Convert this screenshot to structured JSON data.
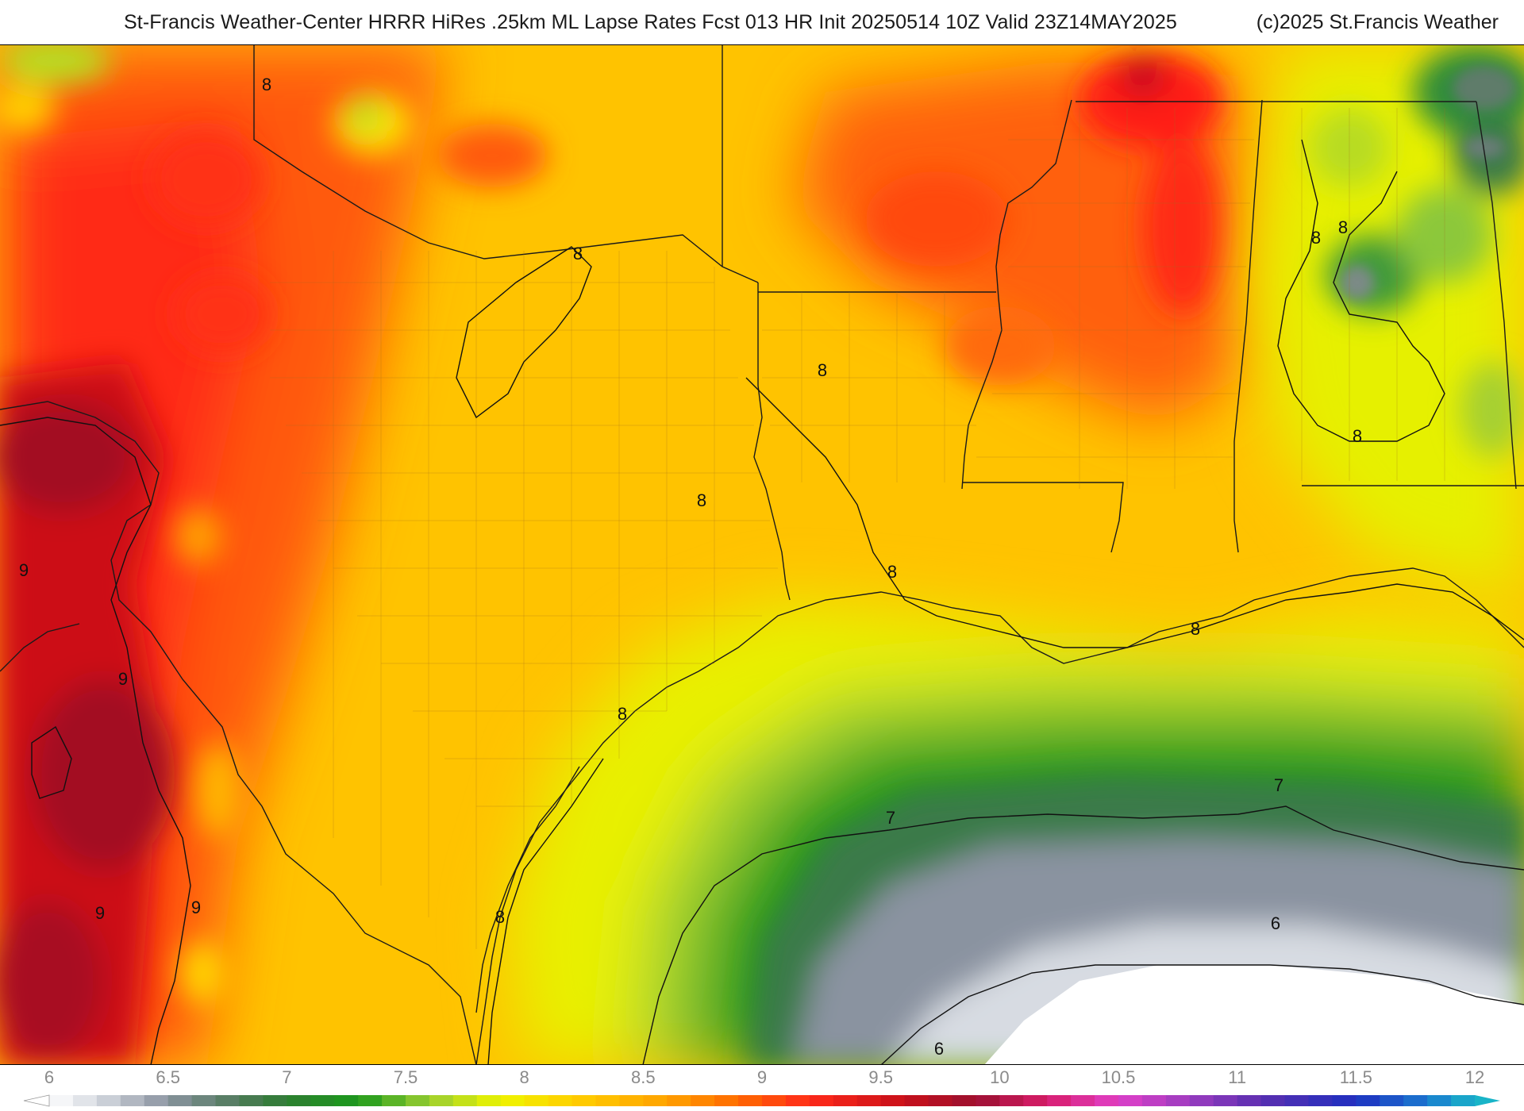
{
  "header": {
    "title": "St-Francis Weather-Center HRRR HiRes .25km ML Lapse Rates  Fcst 013 HR Init 20250514 10Z  Valid 23Z14MAY2025",
    "credit": "(c)2025 St.Francis Weather"
  },
  "map": {
    "contour_labels": [
      {
        "id": "c1",
        "text": "8"
      },
      {
        "id": "c2",
        "text": "8"
      },
      {
        "id": "c3",
        "text": "8"
      },
      {
        "id": "c4",
        "text": "8"
      },
      {
        "id": "c5",
        "text": "8"
      },
      {
        "id": "c6",
        "text": "8"
      },
      {
        "id": "c7",
        "text": "8"
      },
      {
        "id": "c8",
        "text": "8"
      },
      {
        "id": "c9",
        "text": "8"
      },
      {
        "id": "c10",
        "text": "8"
      },
      {
        "id": "c11",
        "text": "8"
      },
      {
        "id": "c12",
        "text": "9"
      },
      {
        "id": "c13",
        "text": "9"
      },
      {
        "id": "c14",
        "text": "9"
      },
      {
        "id": "c15",
        "text": "9"
      },
      {
        "id": "c16",
        "text": "7"
      },
      {
        "id": "c17",
        "text": "7"
      },
      {
        "id": "c18",
        "text": "6"
      },
      {
        "id": "c19",
        "text": "6"
      }
    ],
    "colors": {
      "v6": "#f2f2f6",
      "v6_5": "#8a93a0",
      "v7": "#2e7d32",
      "v7_5": "#9acd32",
      "v8": "#ffe600",
      "v8_5": "#ffa200",
      "v9": "#ff3a1a",
      "v9_5": "#c0101a",
      "v10": "#d81d6b",
      "v10_5": "#b93fbf",
      "v11": "#5b2fb0",
      "v11_5": "#1f2fc0",
      "v12": "#19b4c8"
    }
  },
  "colorbar": {
    "ticks": [
      "6",
      "6.5",
      "7",
      "7.5",
      "8",
      "8.5",
      "9",
      "9.5",
      "10",
      "10.5",
      "11",
      "11.5",
      "12"
    ],
    "min": 6,
    "max": 12,
    "step": 0.1,
    "stops": [
      {
        "v": 6.0,
        "color": "#ffffff"
      },
      {
        "v": 6.2,
        "color": "#d7dbe2"
      },
      {
        "v": 6.5,
        "color": "#8a93a0"
      },
      {
        "v": 6.8,
        "color": "#4f7a5a"
      },
      {
        "v": 7.0,
        "color": "#2e7d32"
      },
      {
        "v": 7.3,
        "color": "#1c9a1c"
      },
      {
        "v": 7.6,
        "color": "#9acd32"
      },
      {
        "v": 7.9,
        "color": "#eef500"
      },
      {
        "v": 8.2,
        "color": "#ffd000"
      },
      {
        "v": 8.6,
        "color": "#ffa200"
      },
      {
        "v": 8.9,
        "color": "#ff6a00"
      },
      {
        "v": 9.2,
        "color": "#ff2a1a"
      },
      {
        "v": 9.6,
        "color": "#c8101a"
      },
      {
        "v": 9.9,
        "color": "#9b1030"
      },
      {
        "v": 10.2,
        "color": "#d81d6b"
      },
      {
        "v": 10.5,
        "color": "#e040c8"
      },
      {
        "v": 10.8,
        "color": "#9b3cc0"
      },
      {
        "v": 11.1,
        "color": "#5b2fb0"
      },
      {
        "v": 11.5,
        "color": "#1f2fc0"
      },
      {
        "v": 11.8,
        "color": "#1b7ad0"
      },
      {
        "v": 12.0,
        "color": "#19b4c8"
      }
    ]
  }
}
